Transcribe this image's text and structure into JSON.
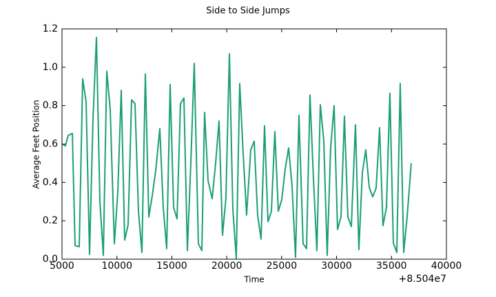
{
  "chart_data": {
    "type": "line",
    "title": "Side to Side Jumps",
    "x_label": "Time",
    "y_label": "Average Feet Position",
    "x_offset_text": "+8.504e7",
    "x": [
      5000,
      5314,
      5564,
      5941,
      6192,
      6568,
      6882,
      7195,
      7509,
      7822,
      8136,
      8450,
      8763,
      9077,
      9390,
      9767,
      10080,
      10394,
      10708,
      11021,
      11335,
      11648,
      11962,
      12276,
      12589,
      12903,
      13216,
      13530,
      13906,
      14220,
      14533,
      14847,
      15161,
      15474,
      15788,
      16101,
      16415,
      16729,
      17042,
      17419,
      17732,
      17983,
      18297,
      18673,
      18987,
      19300,
      19614,
      19927,
      20241,
      20555,
      20868,
      21182,
      21495,
      21809,
      22185,
      22499,
      22812,
      23126,
      23440,
      23753,
      24067,
      24380,
      24694,
      25008,
      25321,
      25635,
      25948,
      26262,
      26576,
      26952,
      27266,
      27579,
      27893,
      28206,
      28520,
      28834,
      29147,
      29461,
      29774,
      30088,
      30402,
      30715,
      31029,
      31342,
      31719,
      32032,
      32346,
      32659,
      32973,
      33287,
      33600,
      33914,
      34227,
      34541,
      34855,
      35168,
      35482,
      35795,
      36109,
      36422,
      36799
    ],
    "series": [
      {
        "name": "Average Feet Position",
        "color": "#1b9e77",
        "values": [
          0.6,
          0.59,
          0.645,
          0.655,
          0.07,
          0.065,
          0.94,
          0.82,
          0.025,
          0.73,
          1.155,
          0.3,
          0.02,
          0.98,
          0.78,
          0.08,
          0.35,
          0.88,
          0.1,
          0.18,
          0.83,
          0.81,
          0.25,
          0.035,
          0.965,
          0.22,
          0.33,
          0.46,
          0.68,
          0.27,
          0.055,
          0.91,
          0.27,
          0.21,
          0.81,
          0.84,
          0.045,
          0.5,
          1.02,
          0.08,
          0.045,
          0.765,
          0.41,
          0.315,
          0.5,
          0.72,
          0.125,
          0.32,
          1.07,
          0.26,
          0.005,
          0.915,
          0.55,
          0.23,
          0.57,
          0.615,
          0.23,
          0.105,
          0.695,
          0.195,
          0.25,
          0.665,
          0.25,
          0.31,
          0.47,
          0.58,
          0.38,
          0.01,
          0.75,
          0.08,
          0.055,
          0.855,
          0.42,
          0.045,
          0.805,
          0.62,
          0.02,
          0.58,
          0.8,
          0.155,
          0.22,
          0.745,
          0.22,
          0.17,
          0.7,
          0.05,
          0.45,
          0.57,
          0.375,
          0.325,
          0.37,
          0.685,
          0.175,
          0.27,
          0.865,
          0.085,
          0.035,
          0.915,
          0.035,
          0.22,
          0.5
        ]
      }
    ],
    "xlim": [
      5000,
      40000
    ],
    "xticks": [
      5000,
      10000,
      15000,
      20000,
      25000,
      30000,
      35000,
      40000
    ],
    "ylim": [
      0,
      1.2
    ],
    "yticks": [
      {
        "value": 0,
        "label": "0.0"
      },
      0.2,
      0.4,
      0.6,
      0.8,
      {
        "value": 1,
        "label": "1.0"
      },
      1.2
    ]
  }
}
